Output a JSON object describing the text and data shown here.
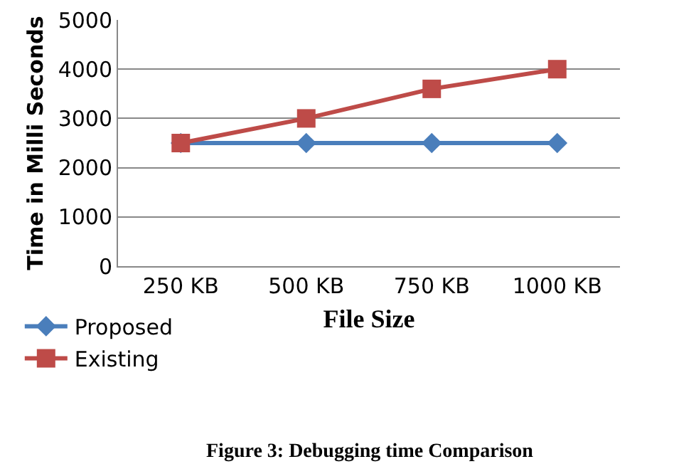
{
  "chart_data": {
    "type": "line",
    "xlabel": "File Size",
    "ylabel": "Time in Milli Seconds",
    "categories": [
      "250 KB",
      "500 KB",
      "750 KB",
      "1000 KB"
    ],
    "series": [
      {
        "name": "Proposed",
        "color": "#4a7ebb",
        "marker": "diamond",
        "values": [
          2500,
          2500,
          2500,
          2500
        ]
      },
      {
        "name": "Existing",
        "color": "#be4b48",
        "marker": "square",
        "values": [
          2500,
          3000,
          3600,
          4000
        ]
      }
    ],
    "ylim": [
      0,
      5000
    ],
    "yticks": [
      0,
      1000,
      2000,
      3000,
      4000,
      5000
    ],
    "grid": "y",
    "legend": "bottom left",
    "annotations": [
      "Figure 3: Debugging time Comparison"
    ]
  }
}
